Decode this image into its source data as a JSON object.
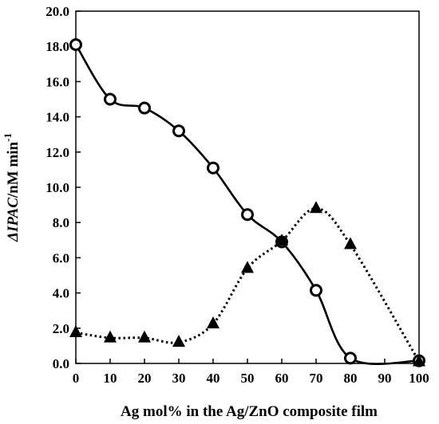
{
  "chart_data": {
    "type": "line",
    "xlabel": "Ag mol% in the Ag/ZnO composite film",
    "ylabel": {
      "italic": "ΔIPAC",
      "normal": "/nM min",
      "superscript": "-1"
    },
    "xlim": [
      0,
      100
    ],
    "ylim": [
      0,
      20
    ],
    "x_ticks": [
      "0",
      "10",
      "20",
      "30",
      "40",
      "50",
      "60",
      "70",
      "80",
      "90",
      "100"
    ],
    "y_ticks": [
      "0.0",
      "2.0",
      "4.0",
      "6.0",
      "8.0",
      "10.0",
      "12.0",
      "14.0",
      "16.0",
      "18.0",
      "20.0"
    ],
    "grid": false,
    "series": [
      {
        "marker": "open-circle",
        "line": "solid",
        "color": "#000000",
        "x": [
          0,
          10,
          20,
          30,
          40,
          50,
          60,
          70,
          80,
          100
        ],
        "y": [
          18.1,
          15.0,
          14.5,
          13.2,
          11.1,
          8.45,
          6.9,
          4.15,
          0.3,
          0.15
        ]
      },
      {
        "marker": "filled-triangle",
        "line": "dotted",
        "color": "#000000",
        "x": [
          0,
          10,
          20,
          30,
          40,
          50,
          60,
          70,
          80,
          100
        ],
        "y": [
          1.75,
          1.45,
          1.45,
          1.2,
          2.25,
          5.4,
          6.95,
          8.8,
          6.75,
          0.1
        ]
      }
    ]
  }
}
